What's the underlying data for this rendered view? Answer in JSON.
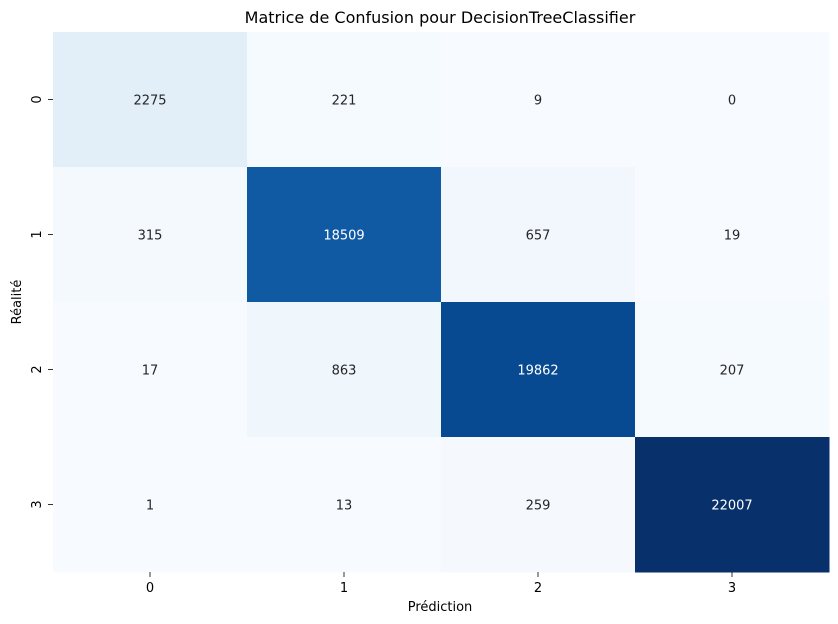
{
  "chart_data": {
    "type": "heatmap",
    "title": "Matrice de Confusion pour DecisionTreeClassifier",
    "xlabel": "Prédiction",
    "ylabel": "Réalité",
    "x_categories": [
      "0",
      "1",
      "2",
      "3"
    ],
    "y_categories": [
      "0",
      "1",
      "2",
      "3"
    ],
    "values": [
      [
        2275,
        221,
        9,
        0
      ],
      [
        315,
        18509,
        657,
        19
      ],
      [
        17,
        863,
        19862,
        207
      ],
      [
        1,
        13,
        259,
        22007
      ]
    ],
    "colormap": "Blues",
    "colorbar": false,
    "grid": false
  }
}
